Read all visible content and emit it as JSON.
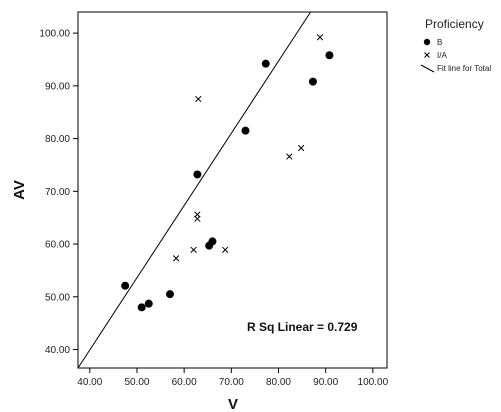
{
  "chart_data": {
    "type": "scatter",
    "xlabel": "V",
    "ylabel": "AV",
    "xlim": [
      37.5,
      103
    ],
    "ylim": [
      36.5,
      104
    ],
    "x_ticks": [
      "40.00",
      "50.00",
      "60.00",
      "70.00",
      "80.00",
      "90.00",
      "100.00"
    ],
    "y_ticks": [
      "40.00",
      "50.00",
      "60.00",
      "70.00",
      "80.00",
      "90.00",
      "100.00"
    ],
    "grid": false,
    "legend_position": "right",
    "legend_title": "Proficiency",
    "series": [
      {
        "name": "B",
        "marker": "circle",
        "points": [
          {
            "x": 47.5,
            "y": 52.1
          },
          {
            "x": 51.0,
            "y": 48.0
          },
          {
            "x": 52.5,
            "y": 48.7
          },
          {
            "x": 57.0,
            "y": 50.5
          },
          {
            "x": 62.8,
            "y": 73.2
          },
          {
            "x": 65.3,
            "y": 59.7
          },
          {
            "x": 66.0,
            "y": 60.5
          },
          {
            "x": 73.0,
            "y": 81.5
          },
          {
            "x": 77.3,
            "y": 94.2
          },
          {
            "x": 87.3,
            "y": 90.8
          },
          {
            "x": 90.8,
            "y": 95.8
          }
        ]
      },
      {
        "name": "I/A",
        "marker": "cross",
        "points": [
          {
            "x": 58.3,
            "y": 57.3
          },
          {
            "x": 62.0,
            "y": 58.9
          },
          {
            "x": 62.8,
            "y": 65.6
          },
          {
            "x": 62.8,
            "y": 64.8
          },
          {
            "x": 63.0,
            "y": 87.5
          },
          {
            "x": 68.7,
            "y": 58.9
          },
          {
            "x": 82.3,
            "y": 76.6
          },
          {
            "x": 84.8,
            "y": 78.2
          },
          {
            "x": 88.8,
            "y": 99.2
          }
        ]
      }
    ],
    "fit_line": {
      "name": "Fit line for Total",
      "x": [
        37.5,
        86.8
      ],
      "y": [
        36.5,
        104
      ]
    },
    "annotation": "R Sq Linear = 0.729"
  }
}
